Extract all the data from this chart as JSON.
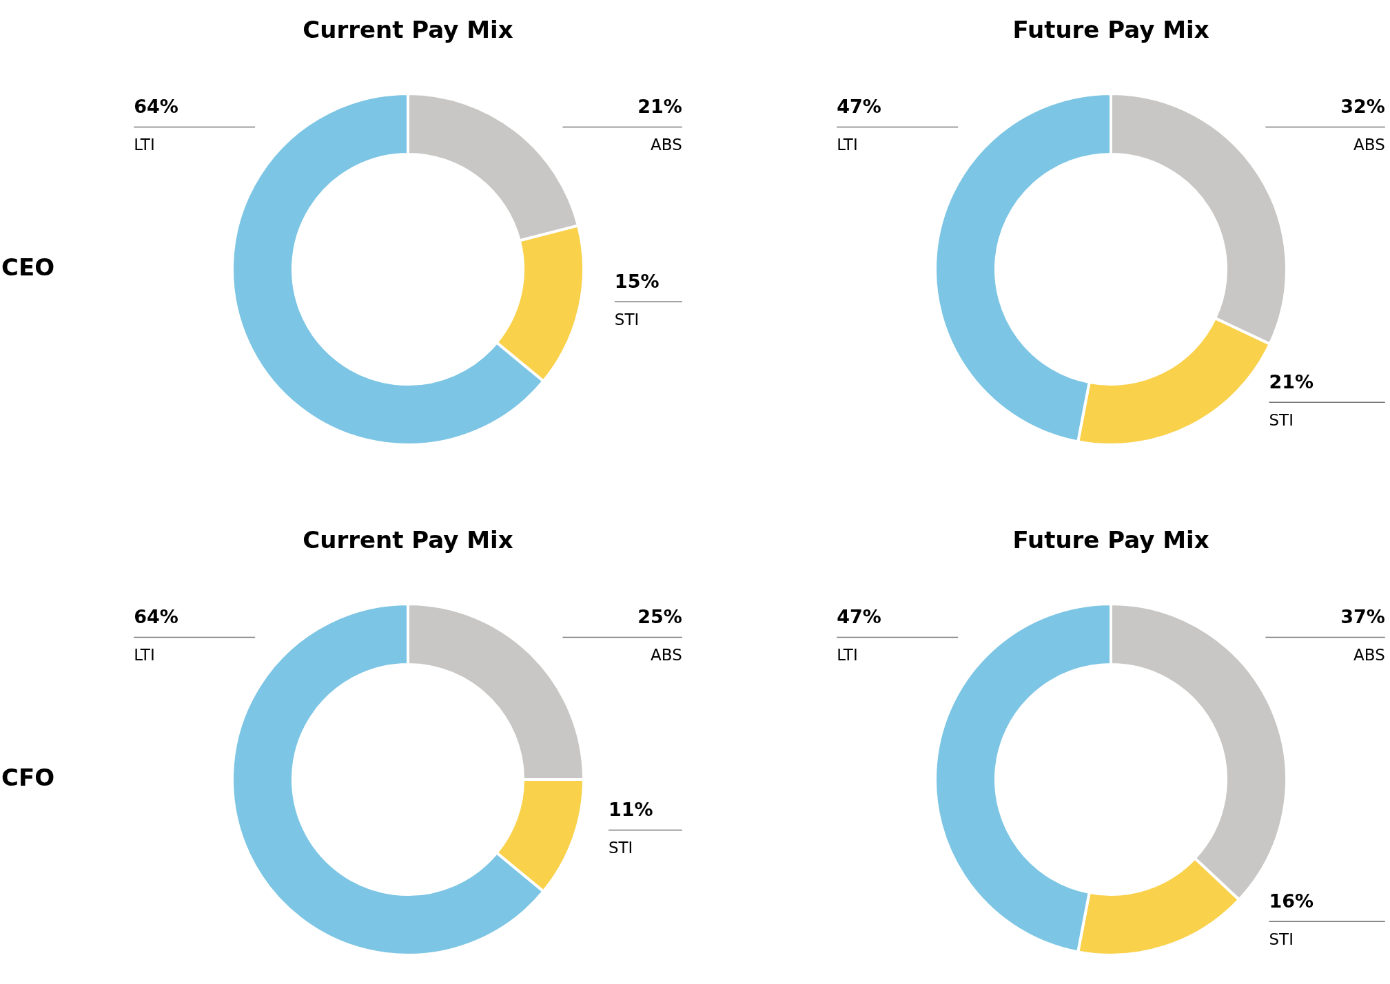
{
  "chart_data": [
    {
      "type": "donut",
      "title": "Current Pay Mix",
      "annotations": [
        "CEO"
      ],
      "categories": [
        "ABS",
        "STI",
        "LTI"
      ],
      "values": [
        21,
        15,
        64
      ],
      "value_labels": [
        "21%",
        "15%",
        "64%"
      ],
      "colors": [
        "#c8c7c5",
        "#f9d14b",
        "#7cc5e4"
      ],
      "legend": false
    },
    {
      "type": "donut",
      "title": "Future Pay Mix",
      "categories": [
        "ABS",
        "STI",
        "LTI"
      ],
      "values": [
        32,
        21,
        47
      ],
      "value_labels": [
        "32%",
        "21%",
        "47%"
      ],
      "colors": [
        "#c8c7c5",
        "#f9d14b",
        "#7cc5e4"
      ],
      "legend": false
    },
    {
      "type": "donut",
      "title": "Current Pay Mix",
      "annotations": [
        "CFO"
      ],
      "categories": [
        "ABS",
        "STI",
        "LTI"
      ],
      "values": [
        25,
        11,
        64
      ],
      "value_labels": [
        "25%",
        "11%",
        "64%"
      ],
      "colors": [
        "#c8c7c5",
        "#f9d14b",
        "#7cc5e4"
      ],
      "legend": false
    },
    {
      "type": "donut",
      "title": "Future Pay Mix",
      "categories": [
        "ABS",
        "STI",
        "LTI"
      ],
      "values": [
        37,
        16,
        47
      ],
      "value_labels": [
        "37%",
        "16%",
        "47%"
      ],
      "colors": [
        "#c8c7c5",
        "#f9d14b",
        "#7cc5e4"
      ],
      "legend": false
    }
  ]
}
